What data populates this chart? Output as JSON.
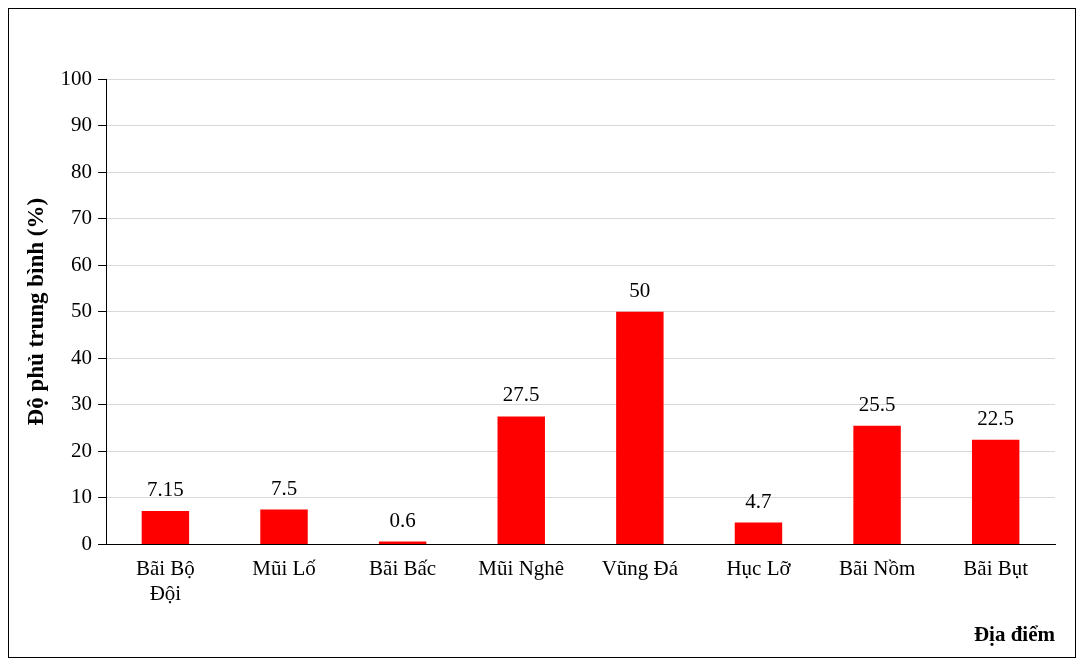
{
  "chart_data": {
    "type": "bar",
    "xlabel": "Địa điểm",
    "ylabel": "Độ phủ trung bình (%)",
    "categories": [
      "Bãi Bộ Đội",
      "Mũi Lố",
      "Bãi Bấc",
      "Mũi Nghê",
      "Vũng Đá",
      "Hục Lỡ",
      "Bãi Nồm",
      "Bãi Bụt"
    ],
    "values": [
      7.15,
      7.5,
      0.6,
      27.5,
      50,
      4.7,
      25.5,
      22.5
    ],
    "color": "#ff0000",
    "ylim": [
      0,
      100
    ],
    "yticks": [
      0,
      10,
      20,
      30,
      40,
      50,
      60,
      70,
      80,
      90,
      100
    ],
    "grid": "y",
    "data_labels": true,
    "legend": false
  }
}
